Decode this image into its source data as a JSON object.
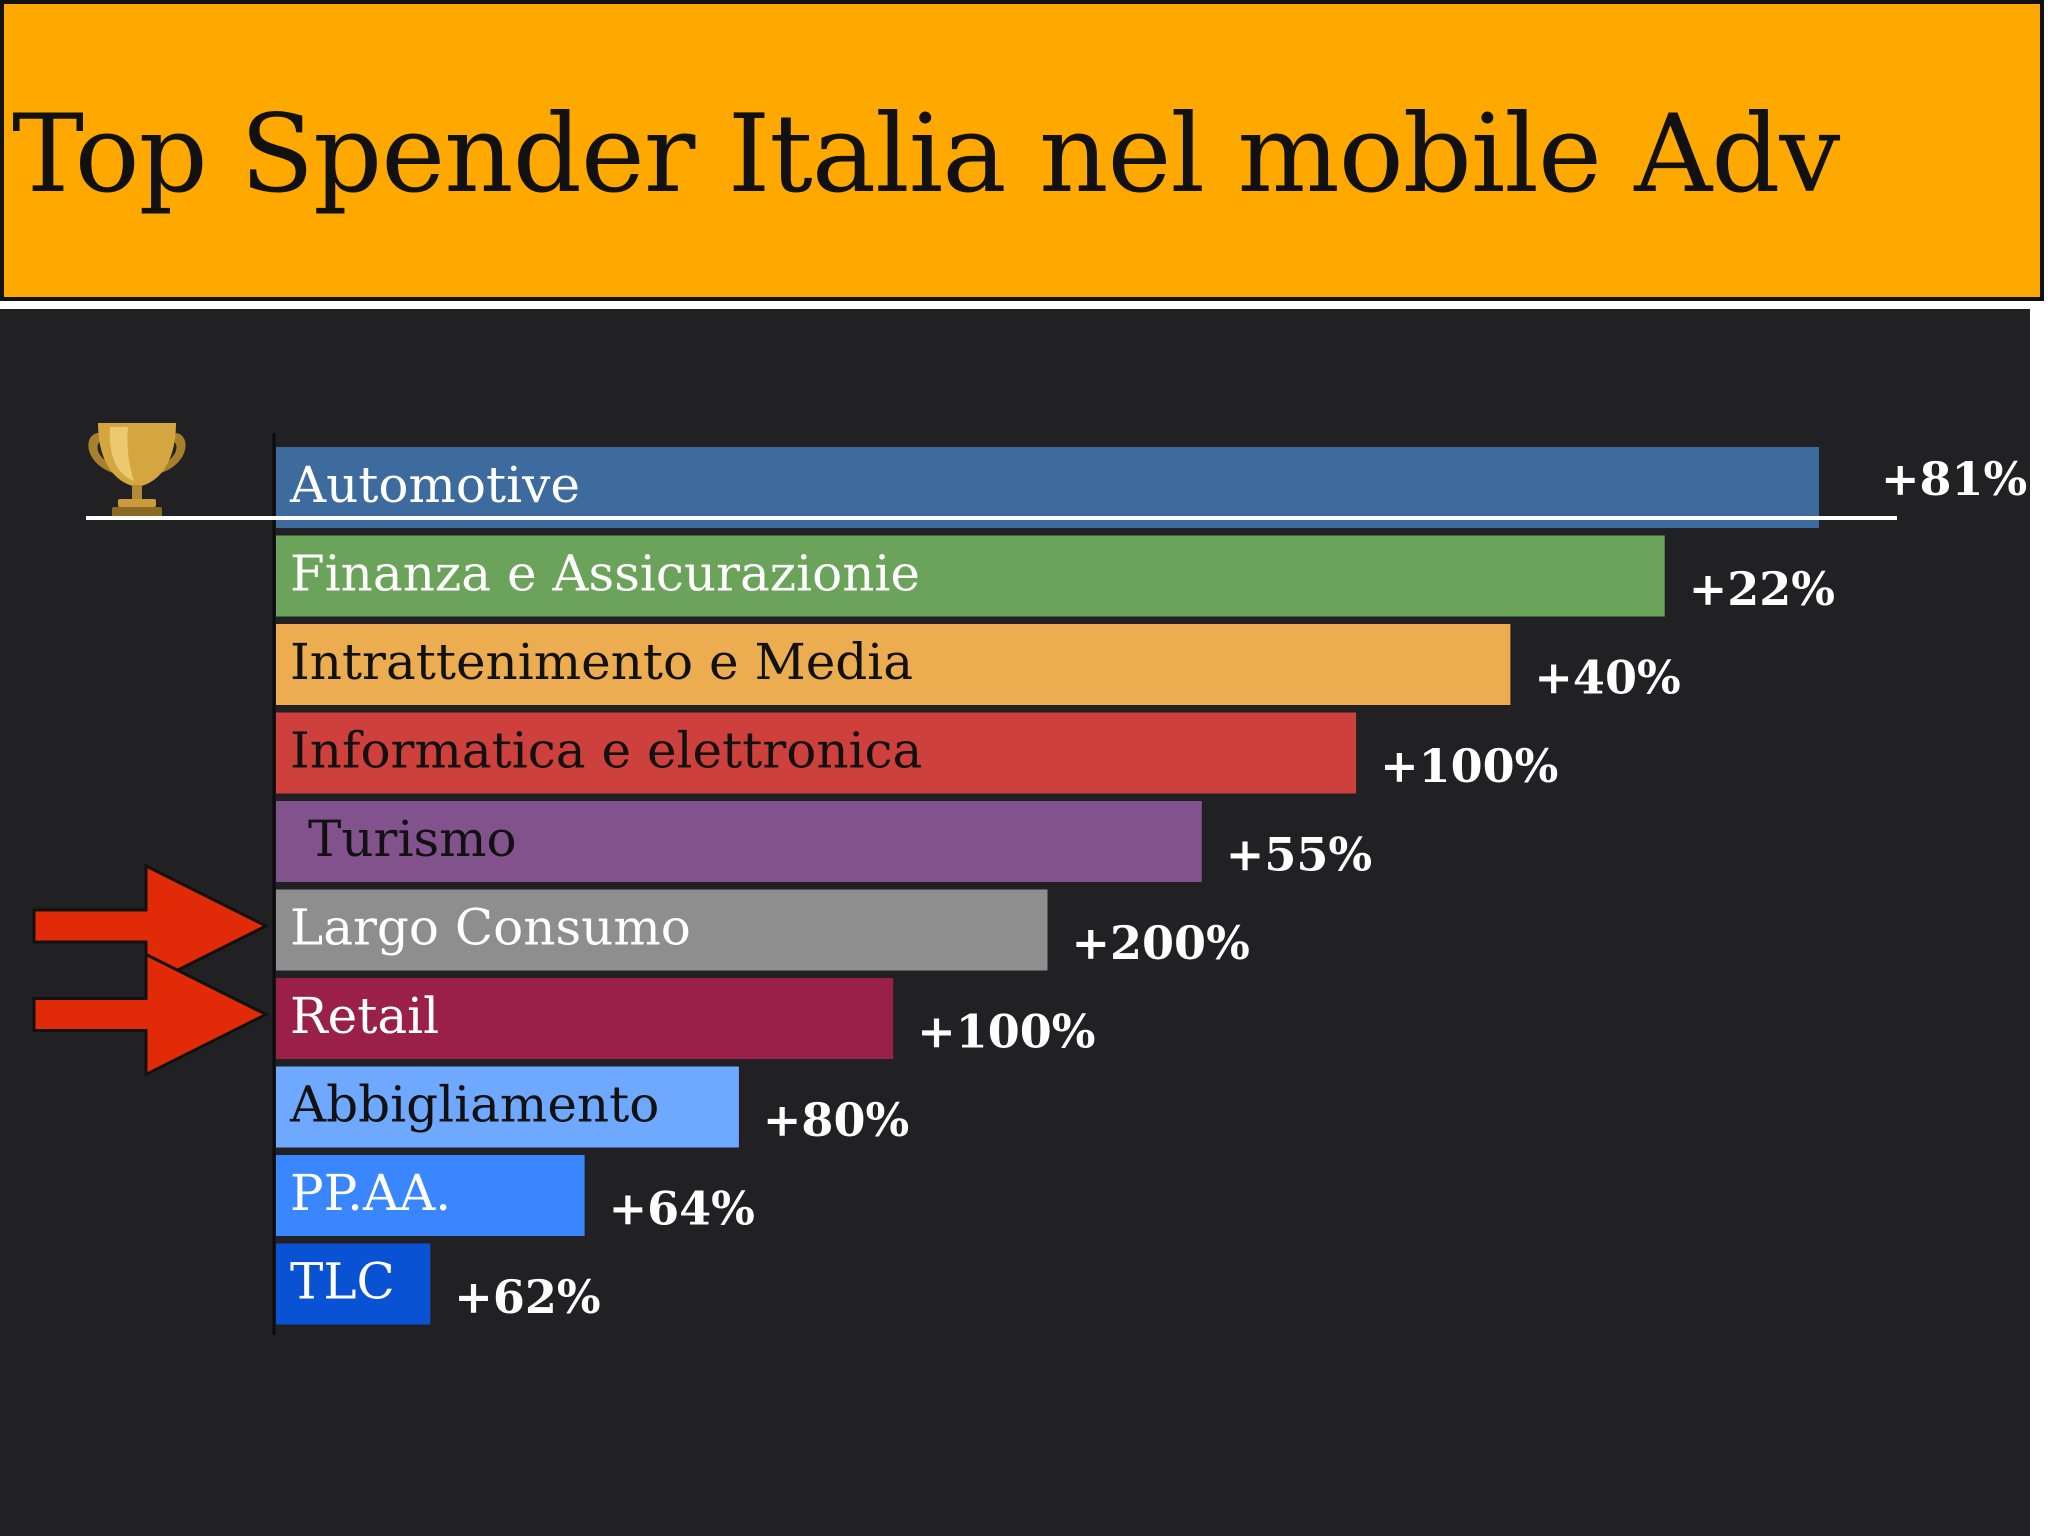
{
  "header": {
    "title": "Top Spender Italia nel mobile Adv",
    "background_color": "#ffa800"
  },
  "panel": {
    "background_color": "#212123"
  },
  "decorations": {
    "trophy_icon": "trophy-icon",
    "highlight_arrows": [
      "Largo Consumo",
      "Retail"
    ],
    "arrow_color": "#e02a08",
    "top_marker_line_under": "Automotive"
  },
  "chart_data": {
    "type": "bar",
    "orientation": "horizontal",
    "value_axis": "unlabeled (ranked order)",
    "categories": [
      "Automotive",
      "Finanza e Assicurazionie",
      "Intrattenimento e Media",
      "Informatica e elettronica",
      "Turismo",
      "Largo Consumo",
      "Retail",
      "Abbigliamento",
      "PP.AA.",
      "TLC"
    ],
    "values": [
      10,
      9,
      8,
      7,
      6,
      5,
      4,
      3,
      2,
      1
    ],
    "growth_labels": [
      "+81%",
      "+22%",
      "+40%",
      "+100%",
      "+55%",
      "+200%",
      "+100%",
      "+80%",
      "+64%",
      "+62%"
    ],
    "growth_values": [
      81,
      22,
      40,
      100,
      55,
      200,
      100,
      80,
      64,
      62
    ],
    "colors": [
      "#3e6b9e",
      "#6ca35a",
      "#ecac50",
      "#ce403b",
      "#81528b",
      "#8e8e8e",
      "#9a2049",
      "#6fa8ff",
      "#3a86ff",
      "#0a52d4"
    ],
    "label_colors": [
      "#ffffff",
      "#ffffff",
      "#111111",
      "#111111",
      "#111111",
      "#ffffff",
      "#ffffff",
      "#111111",
      "#ffffff",
      "#ffffff"
    ],
    "legend": "none",
    "grid": false
  }
}
